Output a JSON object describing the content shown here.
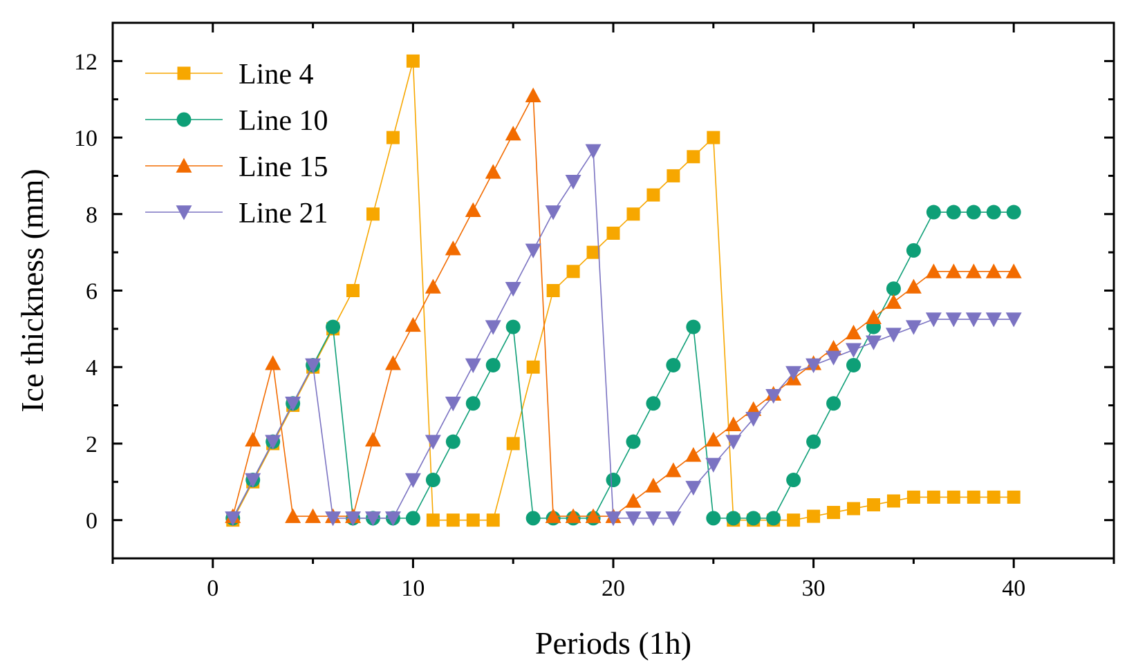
{
  "chart_data": {
    "type": "line",
    "title": "",
    "xlabel": "Periods (1h)",
    "ylabel": "Ice thickness (mm)",
    "xlim": [
      -5,
      45
    ],
    "ylim": [
      -1,
      13
    ],
    "xticks": [
      0,
      10,
      20,
      30,
      40
    ],
    "yticks": [
      0,
      2,
      4,
      6,
      8,
      10,
      12
    ],
    "legend_position": "top-left",
    "grid": false,
    "series": [
      {
        "name": "Line 4",
        "color": "#F7A700",
        "marker": "square",
        "x": [
          1,
          2,
          3,
          4,
          5,
          6,
          7,
          8,
          9,
          10,
          11,
          12,
          13,
          14,
          15,
          16,
          17,
          18,
          19,
          20,
          21,
          22,
          23,
          24,
          25,
          26,
          27,
          28,
          29,
          30,
          31,
          32,
          33,
          34,
          35,
          36,
          37,
          38,
          39,
          40
        ],
        "y": [
          0,
          1,
          2,
          3,
          4,
          5,
          6,
          8,
          10,
          12,
          0,
          0,
          0,
          0,
          2,
          4,
          6,
          6.5,
          7,
          7.5,
          8,
          8.5,
          9,
          9.5,
          10,
          0,
          0,
          0,
          0,
          0.1,
          0.2,
          0.3,
          0.4,
          0.5,
          0.6,
          0.6,
          0.6,
          0.6,
          0.6,
          0.6
        ]
      },
      {
        "name": "Line 10",
        "color": "#0E9F77",
        "marker": "circle",
        "x": [
          1,
          2,
          3,
          4,
          5,
          6,
          7,
          8,
          9,
          10,
          11,
          12,
          13,
          14,
          15,
          16,
          17,
          18,
          19,
          20,
          21,
          22,
          23,
          24,
          25,
          26,
          27,
          28,
          29,
          30,
          31,
          32,
          33,
          34,
          35,
          36,
          37,
          38,
          39,
          40
        ],
        "y": [
          0.05,
          1.05,
          2.05,
          3.05,
          4.05,
          5.05,
          0.05,
          0.05,
          0.05,
          0.05,
          1.05,
          2.05,
          3.05,
          4.05,
          5.05,
          0.05,
          0.05,
          0.05,
          0.05,
          1.05,
          2.05,
          3.05,
          4.05,
          5.05,
          0.05,
          0.05,
          0.05,
          0.05,
          1.05,
          2.05,
          3.05,
          4.05,
          5.05,
          6.05,
          7.05,
          8.05,
          8.05,
          8.05,
          8.05,
          8.05
        ]
      },
      {
        "name": "Line 15",
        "color": "#F26B00",
        "marker": "triangle-up",
        "x": [
          1,
          2,
          3,
          4,
          5,
          6,
          7,
          8,
          9,
          10,
          11,
          12,
          13,
          14,
          15,
          16,
          17,
          18,
          19,
          20,
          21,
          22,
          23,
          24,
          25,
          26,
          27,
          28,
          29,
          30,
          31,
          32,
          33,
          34,
          35,
          36,
          37,
          38,
          39,
          40
        ],
        "y": [
          0.1,
          2.1,
          4.1,
          0.1,
          0.1,
          0.1,
          0.1,
          2.1,
          4.1,
          5.1,
          6.1,
          7.1,
          8.1,
          9.1,
          10.1,
          11.1,
          0.1,
          0.1,
          0.1,
          0.1,
          0.5,
          0.9,
          1.3,
          1.7,
          2.1,
          2.5,
          2.9,
          3.3,
          3.7,
          4.1,
          4.5,
          4.9,
          5.3,
          5.7,
          6.1,
          6.5,
          6.5,
          6.5,
          6.5,
          6.5
        ]
      },
      {
        "name": "Line 21",
        "color": "#7B73C2",
        "marker": "triangle-down",
        "x": [
          1,
          2,
          3,
          4,
          5,
          6,
          7,
          8,
          9,
          10,
          11,
          12,
          13,
          14,
          15,
          16,
          17,
          18,
          19,
          20,
          21,
          22,
          23,
          24,
          25,
          26,
          27,
          28,
          29,
          30,
          31,
          32,
          33,
          34,
          35,
          36,
          37,
          38,
          39,
          40
        ],
        "y": [
          0.05,
          1.05,
          2.05,
          3.05,
          4.05,
          0.05,
          0.05,
          0.05,
          0.05,
          1.05,
          2.05,
          3.05,
          4.05,
          5.05,
          6.05,
          7.05,
          8.05,
          8.85,
          9.65,
          0.05,
          0.05,
          0.05,
          0.05,
          0.85,
          1.45,
          2.05,
          2.65,
          3.25,
          3.85,
          4.05,
          4.25,
          4.45,
          4.65,
          4.85,
          5.05,
          5.25,
          5.25,
          5.25,
          5.25,
          5.25
        ]
      }
    ]
  }
}
